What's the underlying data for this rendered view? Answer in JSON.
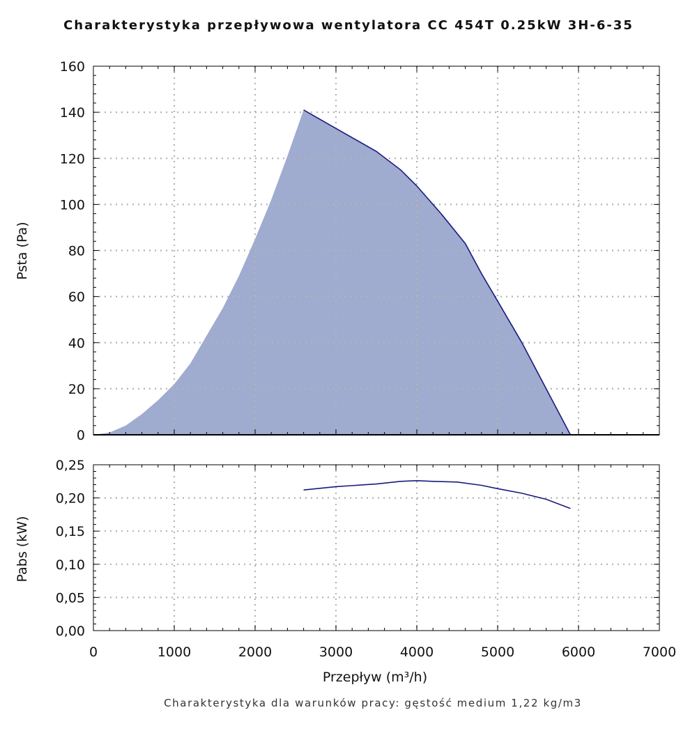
{
  "title": "Charakterystyka przepływowa wentylatora CC 454T 0.25kW 3H-6-35",
  "footnote": "Charakterystyka dla warunków pracy: gęstość medium 1,22 kg/m3",
  "colors": {
    "fill": "#9fabcf",
    "line": "#1a1a80",
    "grid": "#b4b4b4",
    "axis": "#000000"
  },
  "chart_data": [
    {
      "type": "area",
      "title": "Charakterystyka przepływowa wentylatora CC 454T 0.25kW 3H-6-35",
      "xlabel": "",
      "ylabel": "Psta (Pa)",
      "xlim": [
        0,
        7000
      ],
      "ylim": [
        0,
        160
      ],
      "xticks": [
        1000,
        2000,
        3000,
        4000,
        5000,
        6000
      ],
      "yticks": [
        0,
        20,
        40,
        60,
        80,
        100,
        120,
        140,
        160
      ],
      "ytick_labels": [
        "0",
        "20",
        "40",
        "60",
        "80",
        "100",
        "120",
        "140",
        "160"
      ],
      "grid": true,
      "series": [
        {
          "role": "fan curve",
          "x": [
            2600,
            3000,
            3500,
            3800,
            4000,
            4300,
            4600,
            4800,
            5000,
            5300,
            5600,
            5900
          ],
          "y": [
            141,
            133,
            123,
            115,
            108,
            96,
            83,
            70,
            58,
            40,
            20,
            0
          ]
        },
        {
          "role": "operating area lower bound",
          "x": [
            0,
            200,
            400,
            600,
            800,
            1000,
            1200,
            1400,
            1600,
            1800,
            2000,
            2200,
            2400,
            2600
          ],
          "y": [
            0,
            1,
            4,
            9,
            15,
            22,
            31,
            43,
            55,
            69,
            85,
            102,
            121,
            141
          ]
        }
      ]
    },
    {
      "type": "line",
      "xlabel": "Przepływ (m³/h)",
      "ylabel": "Pabs (kW)",
      "xlim": [
        0,
        7000
      ],
      "ylim": [
        0,
        0.25
      ],
      "xticks": [
        0,
        1000,
        2000,
        3000,
        4000,
        5000,
        6000,
        7000
      ],
      "xtick_labels": [
        "0",
        "1000",
        "2000",
        "3000",
        "4000",
        "5000",
        "6000",
        "7000"
      ],
      "yticks": [
        0,
        0.05,
        0.1,
        0.15,
        0.2,
        0.25
      ],
      "ytick_labels": [
        "0,00",
        "0,05",
        "0,10",
        "0,15",
        "0,20",
        "0,25"
      ],
      "grid": true,
      "series": [
        {
          "x": [
            2600,
            3000,
            3500,
            3800,
            4000,
            4200,
            4500,
            4800,
            5000,
            5300,
            5600,
            5900
          ],
          "y": [
            0.212,
            0.217,
            0.221,
            0.225,
            0.226,
            0.225,
            0.224,
            0.219,
            0.214,
            0.207,
            0.198,
            0.184
          ]
        }
      ]
    }
  ]
}
